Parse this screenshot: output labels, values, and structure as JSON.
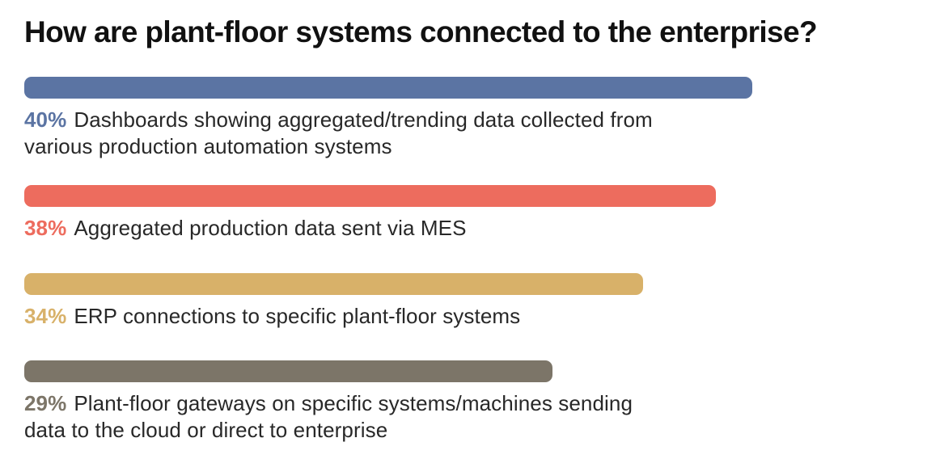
{
  "title": "How are plant-floor systems connected to the enterprise?",
  "chart_data": {
    "type": "bar",
    "orientation": "horizontal",
    "title": "How are plant-floor systems connected to the enterprise?",
    "unit": "%",
    "xlim": [
      0,
      40
    ],
    "grid": false,
    "legend": "none",
    "categories": [
      "Dashboards showing aggregated/trending data collected from various production automation systems",
      "Aggregated production data sent via MES",
      "ERP connections to specific plant-floor systems",
      "Plant-floor gateways on specific systems/machines sending data to the cloud or direct to enterprise"
    ],
    "values": [
      40,
      38,
      34,
      29
    ],
    "bar_colors": [
      "#5B74A3",
      "#ED6C5E",
      "#D8B169",
      "#7C7568"
    ],
    "rows": [
      {
        "value": 40,
        "pct_label": "40%",
        "color": "#5B74A3",
        "label_lines": [
          "Dashboards showing aggregated/trending data collected from",
          "various production automation systems"
        ]
      },
      {
        "value": 38,
        "pct_label": "38%",
        "color": "#ED6C5E",
        "label_lines": [
          "Aggregated production data sent via MES"
        ]
      },
      {
        "value": 34,
        "pct_label": "34%",
        "color": "#D8B169",
        "label_lines": [
          "ERP connections to specific plant-floor systems"
        ]
      },
      {
        "value": 29,
        "pct_label": "29%",
        "color": "#7C7568",
        "label_lines": [
          "Plant-floor gateways on specific systems/machines sending",
          "data to the cloud or direct to enterprise"
        ]
      }
    ]
  }
}
